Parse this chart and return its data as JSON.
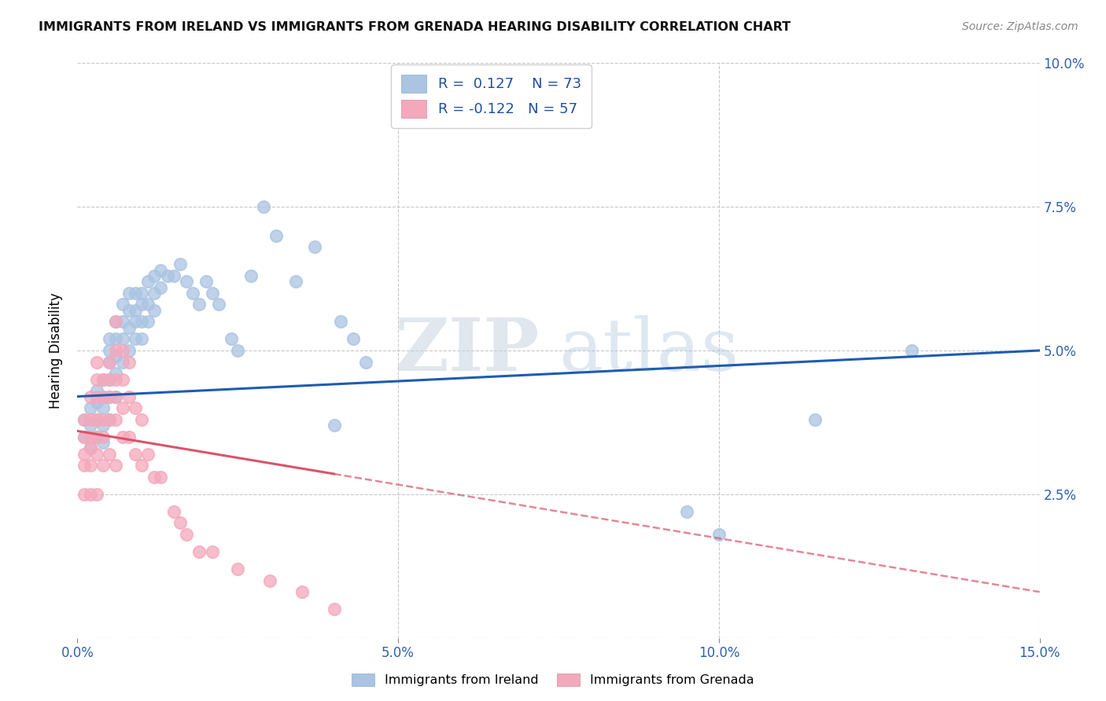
{
  "title": "IMMIGRANTS FROM IRELAND VS IMMIGRANTS FROM GRENADA HEARING DISABILITY CORRELATION CHART",
  "source": "Source: ZipAtlas.com",
  "ylabel": "Hearing Disability",
  "xlim": [
    0.0,
    0.15
  ],
  "ylim": [
    0.0,
    0.1
  ],
  "xticks": [
    0.0,
    0.05,
    0.1,
    0.15
  ],
  "xtick_labels": [
    "0.0%",
    "5.0%",
    "10.0%",
    "15.0%"
  ],
  "yticks": [
    0.0,
    0.025,
    0.05,
    0.075,
    0.1
  ],
  "ytick_labels": [
    "",
    "2.5%",
    "5.0%",
    "7.5%",
    "10.0%"
  ],
  "legend1_label": "Immigrants from Ireland",
  "legend2_label": "Immigrants from Grenada",
  "R_ireland": 0.127,
  "N_ireland": 73,
  "R_grenada": -0.122,
  "N_grenada": 57,
  "ireland_color": "#aac4e2",
  "grenada_color": "#f4a8bc",
  "ireland_line_color": "#1e5cb3",
  "grenada_line_color": "#d9546a",
  "watermark_zip": "ZIP",
  "watermark_atlas": "atlas",
  "ireland_x": [
    0.001,
    0.001,
    0.002,
    0.002,
    0.002,
    0.003,
    0.003,
    0.003,
    0.003,
    0.004,
    0.004,
    0.004,
    0.004,
    0.004,
    0.005,
    0.005,
    0.005,
    0.005,
    0.005,
    0.005,
    0.006,
    0.006,
    0.006,
    0.006,
    0.006,
    0.007,
    0.007,
    0.007,
    0.007,
    0.008,
    0.008,
    0.008,
    0.008,
    0.009,
    0.009,
    0.009,
    0.009,
    0.01,
    0.01,
    0.01,
    0.01,
    0.011,
    0.011,
    0.011,
    0.012,
    0.012,
    0.012,
    0.013,
    0.013,
    0.014,
    0.015,
    0.016,
    0.017,
    0.018,
    0.019,
    0.02,
    0.021,
    0.022,
    0.024,
    0.025,
    0.027,
    0.029,
    0.031,
    0.034,
    0.037,
    0.04,
    0.041,
    0.043,
    0.045,
    0.095,
    0.1,
    0.115,
    0.13
  ],
  "ireland_y": [
    0.038,
    0.035,
    0.04,
    0.037,
    0.033,
    0.043,
    0.041,
    0.038,
    0.035,
    0.045,
    0.042,
    0.04,
    0.037,
    0.034,
    0.052,
    0.05,
    0.048,
    0.045,
    0.042,
    0.038,
    0.055,
    0.052,
    0.049,
    0.046,
    0.042,
    0.058,
    0.055,
    0.052,
    0.048,
    0.06,
    0.057,
    0.054,
    0.05,
    0.06,
    0.057,
    0.055,
    0.052,
    0.06,
    0.058,
    0.055,
    0.052,
    0.062,
    0.058,
    0.055,
    0.063,
    0.06,
    0.057,
    0.064,
    0.061,
    0.063,
    0.063,
    0.065,
    0.062,
    0.06,
    0.058,
    0.062,
    0.06,
    0.058,
    0.052,
    0.05,
    0.063,
    0.075,
    0.07,
    0.062,
    0.068,
    0.037,
    0.055,
    0.052,
    0.048,
    0.022,
    0.018,
    0.038,
    0.05
  ],
  "grenada_x": [
    0.001,
    0.001,
    0.001,
    0.001,
    0.001,
    0.002,
    0.002,
    0.002,
    0.002,
    0.002,
    0.002,
    0.003,
    0.003,
    0.003,
    0.003,
    0.003,
    0.003,
    0.003,
    0.004,
    0.004,
    0.004,
    0.004,
    0.004,
    0.005,
    0.005,
    0.005,
    0.005,
    0.005,
    0.006,
    0.006,
    0.006,
    0.006,
    0.006,
    0.006,
    0.007,
    0.007,
    0.007,
    0.007,
    0.008,
    0.008,
    0.008,
    0.009,
    0.009,
    0.01,
    0.01,
    0.011,
    0.012,
    0.013,
    0.015,
    0.016,
    0.017,
    0.019,
    0.021,
    0.025,
    0.03,
    0.035,
    0.04
  ],
  "grenada_y": [
    0.038,
    0.035,
    0.032,
    0.03,
    0.025,
    0.042,
    0.038,
    0.035,
    0.033,
    0.03,
    0.025,
    0.048,
    0.045,
    0.042,
    0.038,
    0.035,
    0.032,
    0.025,
    0.045,
    0.042,
    0.038,
    0.035,
    0.03,
    0.048,
    0.045,
    0.042,
    0.038,
    0.032,
    0.055,
    0.05,
    0.045,
    0.042,
    0.038,
    0.03,
    0.05,
    0.045,
    0.04,
    0.035,
    0.048,
    0.042,
    0.035,
    0.04,
    0.032,
    0.038,
    0.03,
    0.032,
    0.028,
    0.028,
    0.022,
    0.02,
    0.018,
    0.015,
    0.015,
    0.012,
    0.01,
    0.008,
    0.005
  ]
}
